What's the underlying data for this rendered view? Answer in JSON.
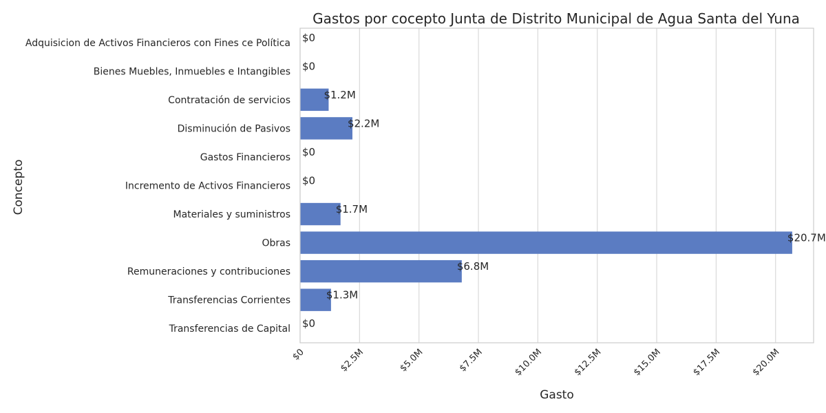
{
  "chart_data": {
    "type": "bar",
    "orientation": "horizontal",
    "title": "Gastos por cocepto Junta de Distrito Municipal de Agua Santa del Yuna",
    "xlabel": "Gasto",
    "ylabel": "Concepto",
    "xlim": [
      0,
      21.6
    ],
    "grid": true,
    "bar_color": "#5b7cc2",
    "categories": [
      "Adquisicion de Activos Financieros con Fines ce Política",
      "Bienes Muebles, Inmuebles e Intangibles",
      "Contratación de servicios",
      "Disminución de Pasivos",
      "Gastos Financieros",
      "Incremento de Activos Financieros",
      "Materiales y suministros",
      "Obras",
      "Remuneraciones y contribuciones",
      "Transferencias Corrientes",
      "Transferencias de Capital"
    ],
    "values": [
      0,
      0,
      1.2,
      2.2,
      0,
      0,
      1.7,
      20.7,
      6.8,
      1.3,
      0
    ],
    "value_labels": [
      "$0",
      "$0",
      "$1.2M",
      "$2.2M",
      "$0",
      "$0",
      "$1.7M",
      "$20.7M",
      "$6.8M",
      "$1.3M",
      "$0"
    ],
    "x_ticks": [
      0,
      2.5,
      5.0,
      7.5,
      10.0,
      12.5,
      15.0,
      17.5,
      20.0
    ],
    "x_tick_labels": [
      "$0",
      "$2.5M",
      "$5.0M",
      "$7.5M",
      "$10.0M",
      "$12.5M",
      "$15.0M",
      "$17.5M",
      "$20.0M"
    ]
  }
}
